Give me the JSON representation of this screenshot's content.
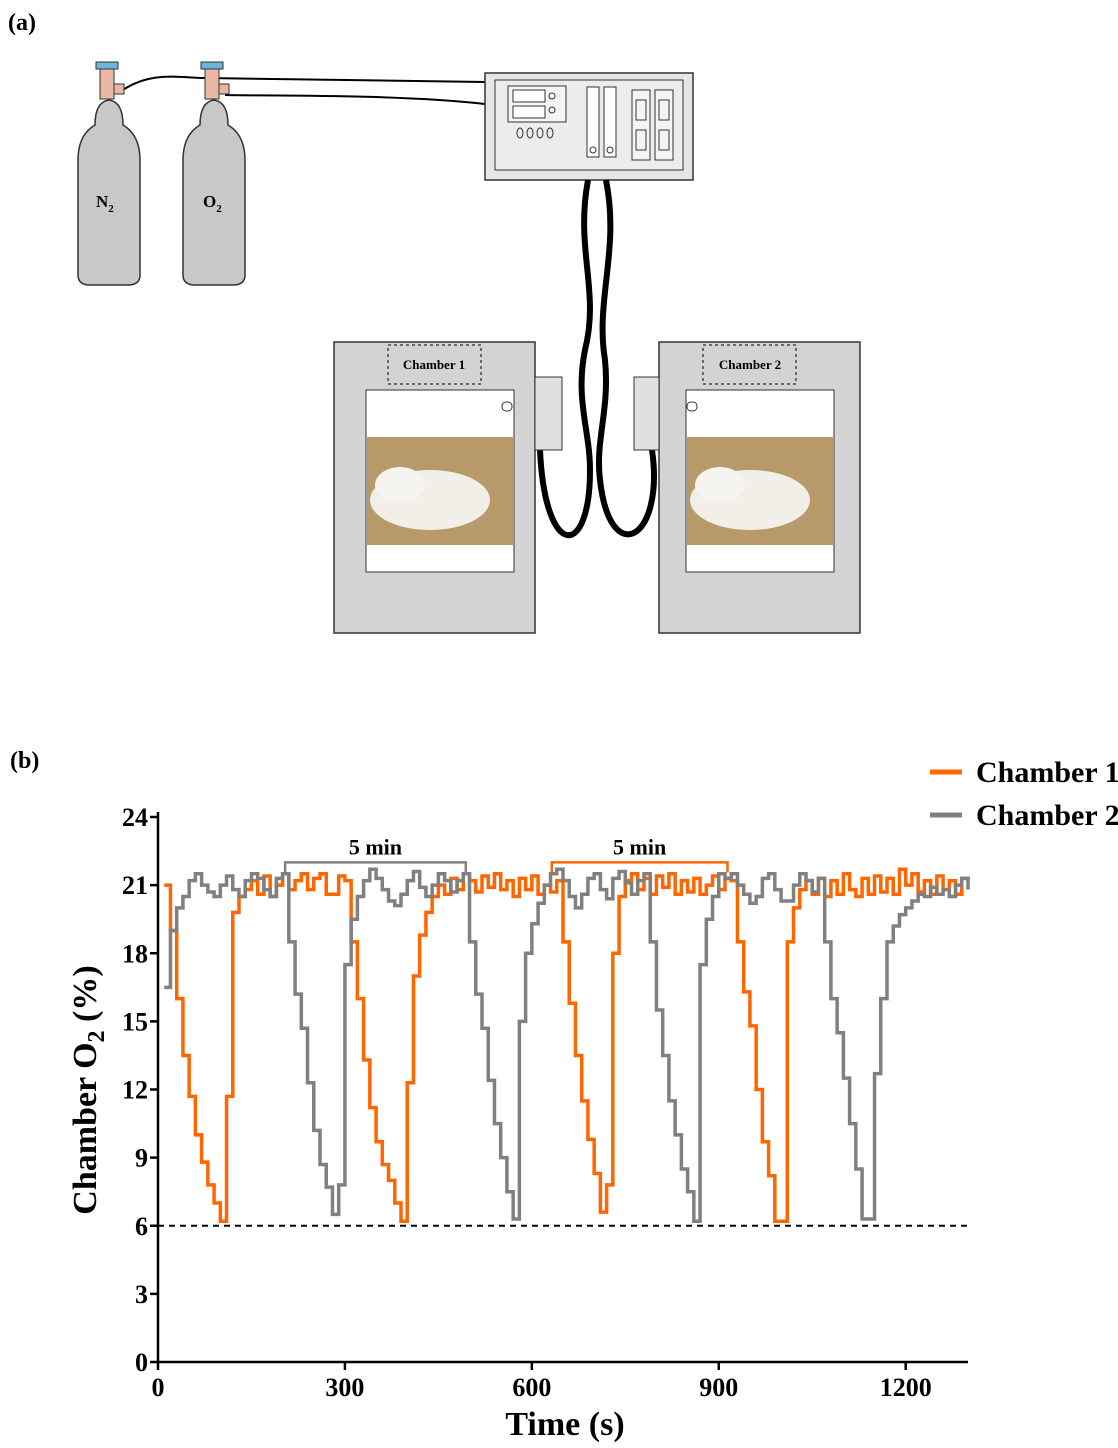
{
  "panel_a": {
    "label": "(a)",
    "cylinders": [
      {
        "main": "N",
        "sub": "2"
      },
      {
        "main": "O",
        "sub": "2"
      }
    ],
    "chambers": [
      "Chamber 1",
      "Chamber 2"
    ]
  },
  "panel_b": {
    "label": "(b)"
  },
  "chart_data": {
    "type": "step-line",
    "xlabel": "Time (s)",
    "ylabel": {
      "main": "Chamber O",
      "sub": "2",
      "suffix": " (%)"
    },
    "xlim": [
      0,
      1300
    ],
    "xticks": [
      0,
      300,
      600,
      900,
      1200
    ],
    "ylim": [
      0,
      24
    ],
    "yticks": [
      0,
      3,
      6,
      9,
      12,
      15,
      18,
      21,
      24
    ],
    "reference_line": {
      "y": 6,
      "color": "#000000",
      "style": "dashed"
    },
    "legend": "top-right",
    "annotations": [
      {
        "text": "5 min",
        "x": [
          204,
          494
        ],
        "y": 22,
        "color": "#808080"
      },
      {
        "text": "5 min",
        "x": [
          632,
          914
        ],
        "y": 22,
        "color": "#ff6600"
      }
    ],
    "x": [
      10,
      20,
      30,
      40,
      50,
      60,
      70,
      80,
      90,
      100,
      110,
      120,
      130,
      140,
      150,
      160,
      170,
      180,
      190,
      200,
      210,
      220,
      230,
      240,
      250,
      260,
      270,
      280,
      290,
      300,
      310,
      320,
      330,
      340,
      350,
      360,
      370,
      380,
      390,
      400,
      410,
      420,
      430,
      440,
      450,
      460,
      470,
      480,
      490,
      500,
      510,
      520,
      530,
      540,
      550,
      560,
      570,
      580,
      590,
      600,
      610,
      620,
      630,
      640,
      650,
      660,
      670,
      680,
      690,
      700,
      710,
      720,
      730,
      740,
      750,
      760,
      770,
      780,
      790,
      800,
      810,
      820,
      830,
      840,
      850,
      860,
      870,
      880,
      890,
      900,
      910,
      920,
      930,
      940,
      950,
      960,
      970,
      980,
      990,
      1000,
      1010,
      1020,
      1030,
      1040,
      1050,
      1060,
      1070,
      1080,
      1090,
      1100,
      1110,
      1120,
      1130,
      1140,
      1150,
      1160,
      1170,
      1180,
      1190,
      1200,
      1210,
      1220,
      1230,
      1240,
      1250,
      1260,
      1270,
      1280,
      1290,
      1300
    ],
    "series": [
      {
        "name": "Chamber 1",
        "color": "#ff6600",
        "values": [
          21,
          19,
          16,
          13.5,
          11.7,
          10,
          8.8,
          7.8,
          7,
          6.2,
          11.7,
          19.8,
          20.5,
          20.8,
          21.2,
          20.6,
          21.4,
          20.5,
          21,
          21.5,
          20.8,
          21.2,
          21.5,
          20.8,
          21.3,
          21.5,
          20.6,
          20.6,
          21.4,
          21.2,
          18.5,
          16,
          13.3,
          11.2,
          9.7,
          8.7,
          8,
          7,
          6.2,
          12.3,
          17,
          18.8,
          19.8,
          20.5,
          21,
          20.6,
          21.3,
          20.8,
          21.5,
          21.2,
          20.7,
          21.4,
          20.9,
          21.5,
          20.8,
          21.2,
          20.5,
          21.3,
          20.8,
          21.4,
          20.6,
          21,
          20.7,
          21.2,
          18.5,
          15.8,
          13.5,
          11.5,
          9.8,
          8.3,
          6.6,
          7.8,
          18,
          20.5,
          21.2,
          21.5,
          20.8,
          21.3,
          20.6,
          21.4,
          20.9,
          21.5,
          20.6,
          21.2,
          20.7,
          21.3,
          20.6,
          21,
          21.4,
          20.8,
          21.3,
          21.2,
          18.5,
          16.3,
          14.8,
          12,
          9.7,
          8.2,
          6.2,
          6.2,
          18.5,
          20,
          20.8,
          21.2,
          20.6,
          21.3,
          20.5,
          21.2,
          20.6,
          21.5,
          20.8,
          20.5,
          21.3,
          20.6,
          21.4,
          20.7,
          21.3,
          20.6,
          21.7,
          21,
          21.5,
          20.7,
          21.2,
          20.6,
          21.4,
          20.8,
          21.2,
          20.6,
          21.3,
          21.2
        ]
      },
      {
        "name": "Chamber 2",
        "color": "#808080",
        "values": [
          16.5,
          19,
          20,
          20.5,
          21.2,
          21.5,
          21,
          20.7,
          20.5,
          21,
          21.4,
          20.8,
          20.5,
          21.2,
          21.5,
          21.3,
          20.8,
          20.5,
          21.3,
          21.5,
          18.5,
          16.2,
          14.7,
          12.3,
          10.2,
          8.7,
          7.7,
          6.5,
          7.8,
          17.5,
          19.5,
          20.5,
          21.2,
          21.7,
          21.3,
          20.8,
          20.3,
          20.1,
          20.6,
          21.2,
          21.6,
          20.9,
          20.5,
          21,
          21.5,
          21.2,
          20.7,
          21.2,
          21.5,
          18.5,
          16.2,
          14.7,
          12.4,
          10.5,
          9,
          7.5,
          6.3,
          15,
          18,
          19.3,
          20.2,
          21,
          21.5,
          21.7,
          21.2,
          20.5,
          20,
          20.6,
          21.3,
          21.5,
          20.8,
          20.4,
          21.3,
          21.6,
          21.1,
          20.6,
          21.2,
          21.5,
          18.5,
          15.5,
          13.5,
          11.5,
          10,
          8.5,
          7.5,
          6.2,
          17.5,
          19.5,
          20.5,
          21.5,
          21.3,
          21.5,
          21,
          20.6,
          20.2,
          20.5,
          21.3,
          21.5,
          20.8,
          20.3,
          20.3,
          21,
          21.5,
          21.2,
          20.7,
          21.3,
          18.5,
          16,
          14.5,
          12.5,
          10.5,
          8.5,
          6.3,
          6.3,
          12.7,
          16,
          18.5,
          19.2,
          19.7,
          20,
          20.3,
          20.6,
          20.5,
          20.9,
          20.6,
          20.8,
          20.5,
          21,
          21.3,
          20.8
        ]
      }
    ]
  }
}
